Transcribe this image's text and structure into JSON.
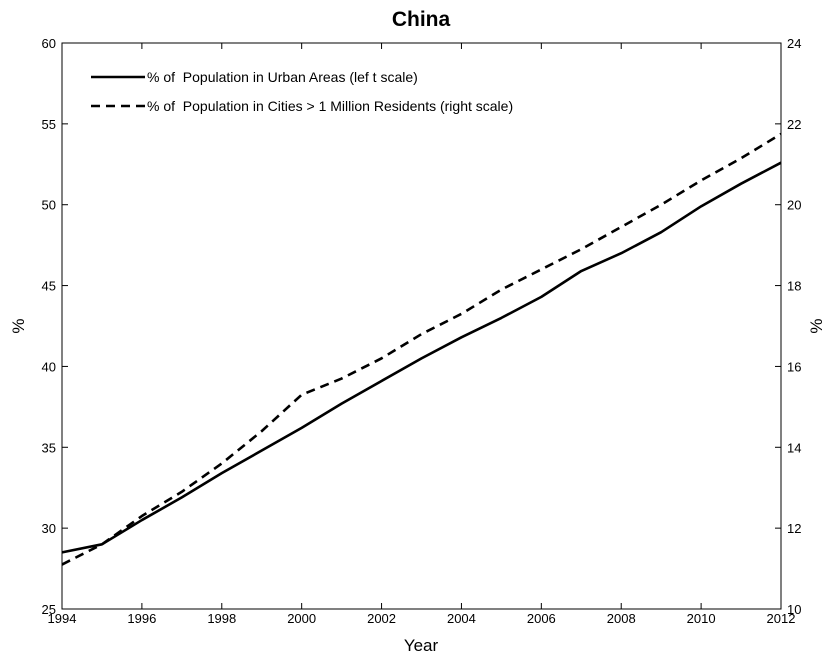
{
  "chart_data": {
    "type": "line",
    "title": "China",
    "xlabel": "Year",
    "ylabel_left": "%",
    "ylabel_right": "%",
    "xlim": [
      1994,
      2012
    ],
    "ylim_left": [
      25,
      60
    ],
    "ylim_right": [
      10,
      24
    ],
    "x_ticks": [
      "1994",
      "1996",
      "1998",
      "2000",
      "2002",
      "2004",
      "2006",
      "2008",
      "2010",
      "2012"
    ],
    "y_left_ticks": [
      "25",
      "30",
      "35",
      "40",
      "45",
      "50",
      "55",
      "60"
    ],
    "y_right_ticks": [
      "10",
      "12",
      "14",
      "16",
      "18",
      "20",
      "22",
      "24"
    ],
    "legend_position": "top-left",
    "grid": false,
    "series": [
      {
        "name": "% of  Population in Urban Areas (lef t scale)",
        "axis": "left",
        "style": "solid",
        "color": "#000000",
        "x": [
          1994,
          1995,
          1996,
          1997,
          1998,
          1999,
          2000,
          2001,
          2002,
          2003,
          2004,
          2005,
          2006,
          2007,
          2008,
          2009,
          2010,
          2011,
          2012
        ],
        "values": [
          28.5,
          29.0,
          30.5,
          31.9,
          33.4,
          34.8,
          36.2,
          37.7,
          39.1,
          40.5,
          41.8,
          43.0,
          44.3,
          45.9,
          47.0,
          48.3,
          49.9,
          51.3,
          52.6
        ]
      },
      {
        "name": "% of  Population in Cities > 1 Million Residents (right scale)",
        "axis": "right",
        "style": "dashed",
        "color": "#000000",
        "x": [
          1994,
          1995,
          1996,
          1997,
          1998,
          1999,
          2000,
          2001,
          2002,
          2003,
          2004,
          2005,
          2006,
          2007,
          2008,
          2009,
          2010,
          2011,
          2012
        ],
        "values": [
          11.1,
          11.6,
          12.3,
          12.9,
          13.6,
          14.4,
          15.3,
          15.7,
          16.2,
          16.8,
          17.3,
          17.9,
          18.4,
          18.9,
          19.45,
          20.0,
          20.6,
          21.15,
          21.75
        ]
      }
    ]
  }
}
